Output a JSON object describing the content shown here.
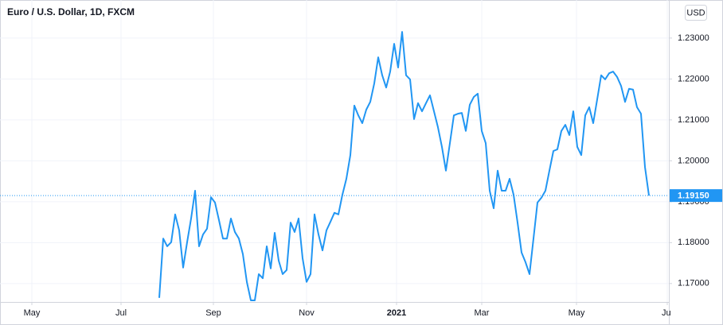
{
  "chart_data": {
    "type": "line",
    "title": "Euro / U.S. Dollar, 1D, FXCM",
    "currency": "USD",
    "color": "#2196f3",
    "grid": true,
    "x": [
      0,
      1,
      2,
      3,
      4,
      5,
      6,
      7,
      8,
      9,
      10,
      11,
      12,
      13,
      14,
      15,
      16,
      17,
      18,
      19,
      20,
      21,
      22,
      23,
      24,
      25,
      26,
      27,
      28,
      29,
      30,
      31,
      32,
      33,
      34,
      35,
      36,
      37,
      38,
      39,
      40,
      41,
      42,
      43,
      44,
      45,
      46,
      47,
      48,
      49,
      50,
      51,
      52,
      53,
      54,
      55,
      56,
      57,
      58,
      59,
      60,
      61,
      62,
      63,
      64,
      65,
      66,
      67,
      68,
      69,
      70,
      71,
      72,
      73,
      74,
      75,
      76,
      77,
      78,
      79,
      80,
      81,
      82,
      83,
      84,
      85,
      86,
      87,
      88,
      89,
      90,
      91,
      92,
      93,
      94,
      95,
      96,
      97,
      98,
      99,
      100,
      101,
      102,
      103,
      104,
      105,
      106,
      107,
      108,
      109,
      110,
      111,
      112,
      113,
      114,
      115,
      116,
      117,
      118,
      119,
      120,
      121,
      122,
      123
    ],
    "values": [
      1.1665,
      1.181,
      1.1791,
      1.1801,
      1.1869,
      1.183,
      1.1739,
      1.1801,
      1.1859,
      1.1927,
      1.1791,
      1.182,
      1.1834,
      1.1911,
      1.1898,
      1.1855,
      1.181,
      1.181,
      1.1859,
      1.1826,
      1.181,
      1.1772,
      1.1704,
      1.1659,
      1.1659,
      1.1723,
      1.1713,
      1.1791,
      1.1737,
      1.1824,
      1.1756,
      1.1723,
      1.1733,
      1.1849,
      1.1826,
      1.1859,
      1.1762,
      1.1704,
      1.1723,
      1.1869,
      1.182,
      1.1781,
      1.183,
      1.1851,
      1.1873,
      1.1869,
      1.1917,
      1.1956,
      1.2014,
      1.2135,
      1.2111,
      1.2092,
      1.2125,
      1.2144,
      1.2189,
      1.2253,
      1.2209,
      1.2179,
      1.2218,
      1.2286,
      1.2228,
      1.2315,
      1.2209,
      1.2199,
      1.2102,
      1.2141,
      1.2121,
      1.2141,
      1.216,
      1.2121,
      1.2082,
      1.2034,
      1.1976,
      1.2043,
      1.2111,
      1.2115,
      1.2117,
      1.2073,
      1.2137,
      1.2156,
      1.2164,
      1.2073,
      1.2043,
      1.1927,
      1.1884,
      1.1976,
      1.1927,
      1.1927,
      1.1956,
      1.1917,
      1.1849,
      1.1776,
      1.1752,
      1.1723,
      1.181,
      1.1898,
      1.191,
      1.1927,
      1.1976,
      1.2024,
      1.2028,
      1.2073,
      1.2088,
      1.2063,
      1.2121,
      1.2034,
      1.2014,
      1.2111,
      1.2131,
      1.2092,
      1.215,
      1.2209,
      1.2199,
      1.2214,
      1.2218,
      1.2205,
      1.2183,
      1.2144,
      1.2176,
      1.2174,
      1.2131,
      1.2115,
      1.1985,
      1.1915
    ],
    "xlim": [
      -40,
      128
    ],
    "xticks": [
      {
        "value": -32,
        "label": "May"
      },
      {
        "value": -9.6,
        "label": "Jul"
      },
      {
        "value": 13.6,
        "label": "Sep"
      },
      {
        "value": 37,
        "label": "Nov"
      },
      {
        "value": 59.6,
        "label": "2021"
      },
      {
        "value": 81,
        "label": "Mar"
      },
      {
        "value": 104.8,
        "label": "May"
      },
      {
        "value": 127.6,
        "label": "Jul"
      }
    ],
    "ylim": [
      1.1655,
      1.2393
    ],
    "yticks": [
      {
        "value": 1.17,
        "label": "1.17000"
      },
      {
        "value": 1.18,
        "label": "1.18000"
      },
      {
        "value": 1.19,
        "label": "1.19000"
      },
      {
        "value": 1.2,
        "label": "1.20000"
      },
      {
        "value": 1.21,
        "label": "1.21000"
      },
      {
        "value": 1.22,
        "label": "1.22000"
      },
      {
        "value": 1.23,
        "label": "1.23000"
      }
    ],
    "last_price": {
      "value": 1.1915,
      "label": "1.19150"
    }
  }
}
